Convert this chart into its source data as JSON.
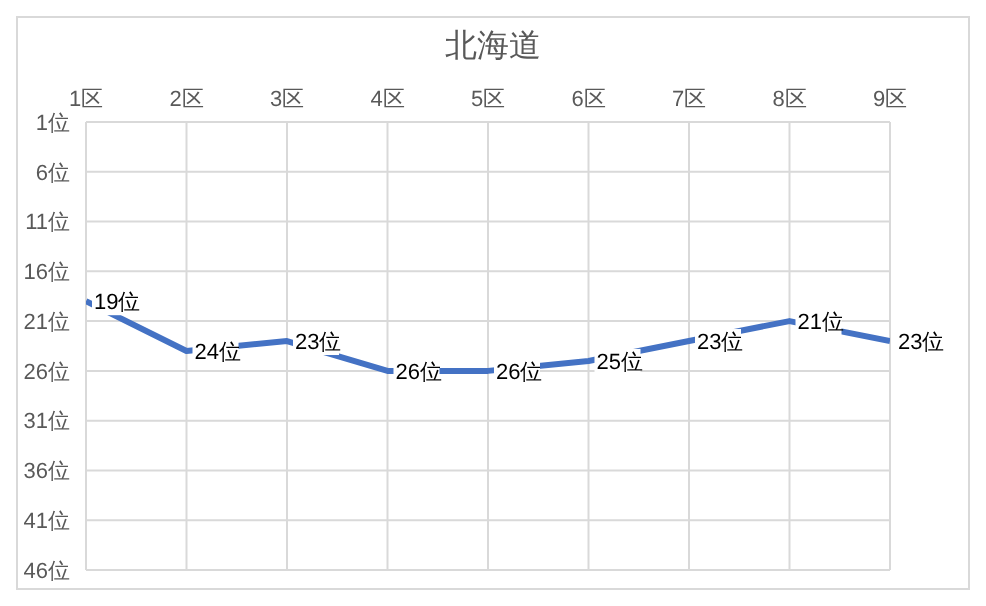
{
  "chart_data": {
    "type": "line",
    "title": "北海道",
    "categories": [
      "1区",
      "2区",
      "3区",
      "4区",
      "5区",
      "6区",
      "7区",
      "8区",
      "9区"
    ],
    "series": [
      {
        "color": "#4472c4",
        "values": [
          19,
          24,
          23,
          26,
          26,
          25,
          23,
          21,
          23
        ],
        "value_labels": [
          "19位",
          "24位",
          "23位",
          "26位",
          "26位",
          "25位",
          "23位",
          "21位",
          "23位"
        ]
      }
    ],
    "ylim": [
      46,
      1
    ],
    "yticks": [
      {
        "value": 1,
        "label": "1位"
      },
      {
        "value": 6,
        "label": "6位"
      },
      {
        "value": 11,
        "label": "11位"
      },
      {
        "value": 16,
        "label": "16位"
      },
      {
        "value": 21,
        "label": "21位"
      },
      {
        "value": 26,
        "label": "26位"
      },
      {
        "value": 31,
        "label": "31位"
      },
      {
        "value": 36,
        "label": "36位"
      },
      {
        "value": 41,
        "label": "41位"
      },
      {
        "value": 46,
        "label": "46位"
      }
    ],
    "grid": true,
    "marker": "none",
    "line_style": "solid",
    "legend": false
  }
}
